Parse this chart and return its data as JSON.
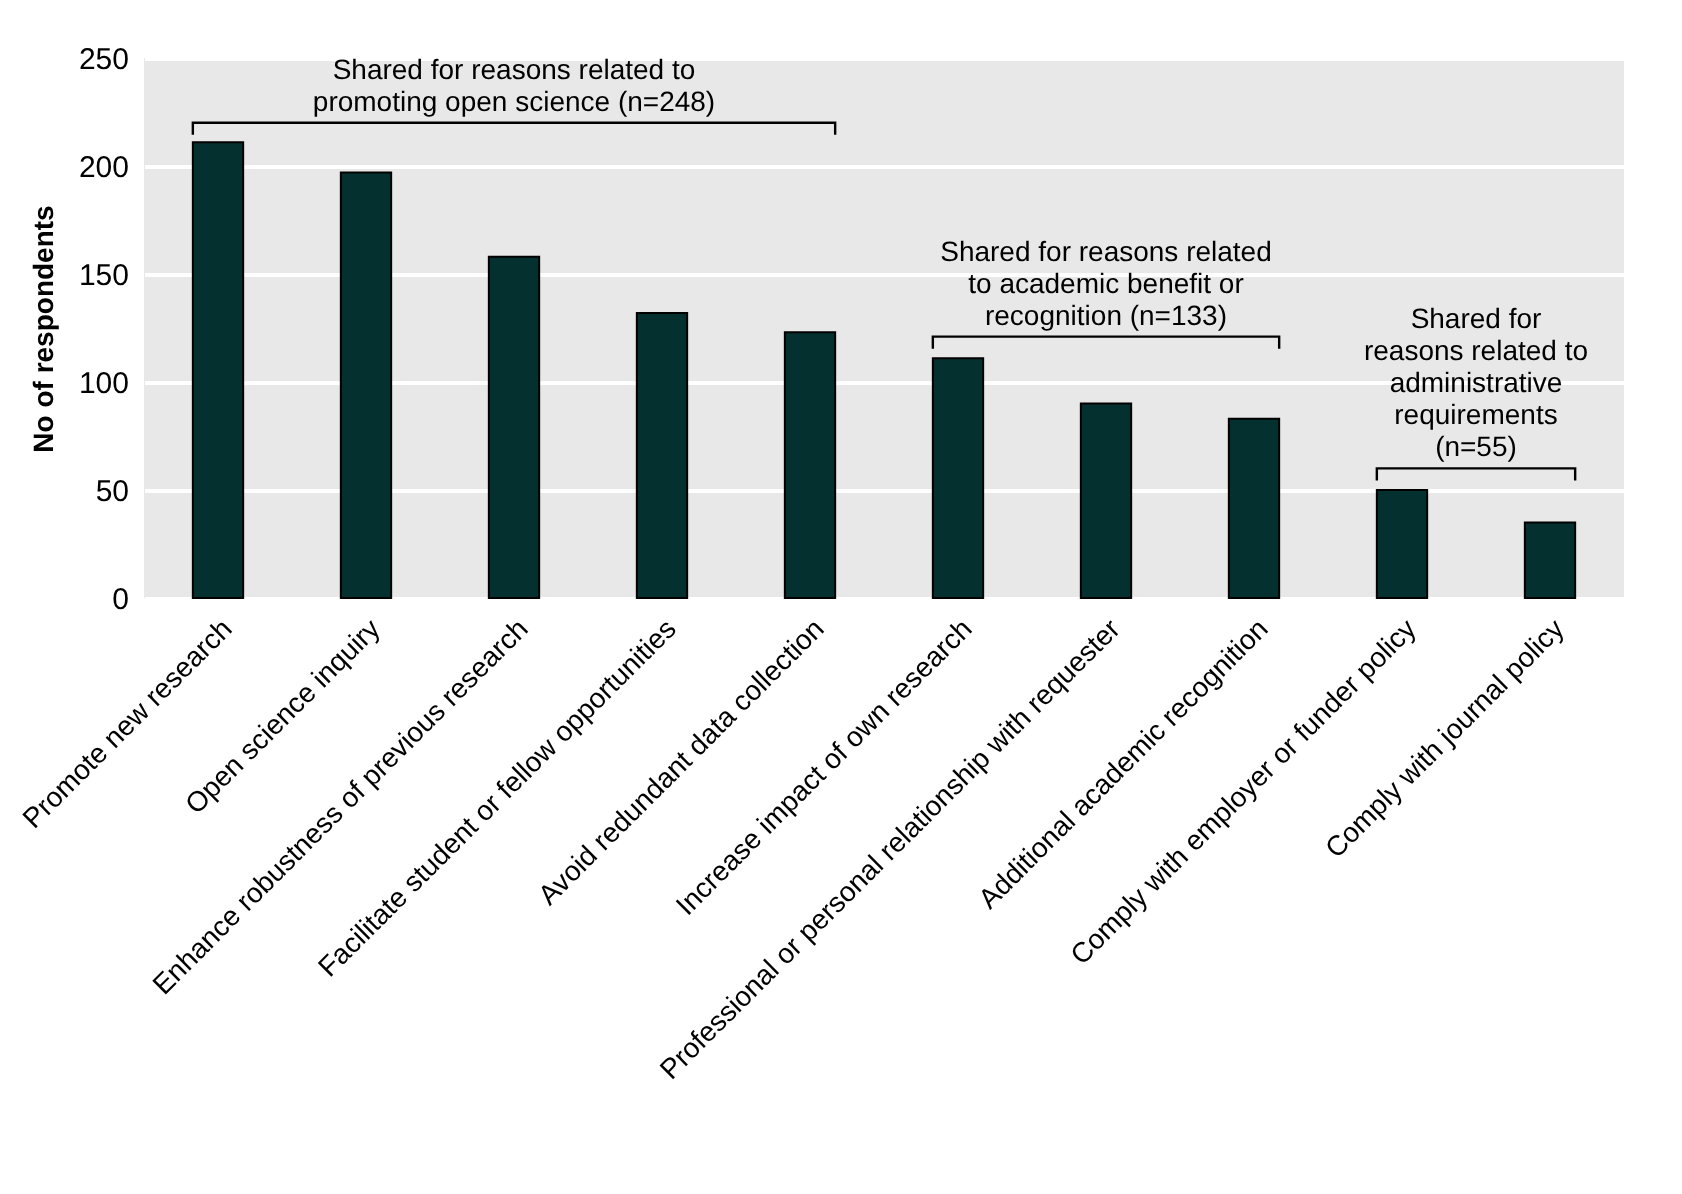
{
  "chart_data": {
    "type": "bar",
    "ylabel": "No of respondents",
    "categories": [
      "Promote new research",
      "Open science inquiry",
      "Enhance robustness of previous research",
      "Facilitate student or fellow opportunities",
      "Avoid redundant data collection",
      "Increase impact of own research",
      "Professional or personal relationship with requester",
      "Additional academic recognition",
      "Comply with employer or funder policy",
      "Comply with journal policy"
    ],
    "values": [
      211,
      197,
      158,
      132,
      123,
      111,
      90,
      83,
      50,
      35
    ],
    "color": "#04302f",
    "ylim": [
      0,
      250
    ],
    "yticks": [
      0,
      50,
      100,
      150,
      200,
      250
    ],
    "grid": "y",
    "annotations": [
      "Shared for reasons related to\npromoting open science (n=248)",
      "Shared for reasons related\nto academic benefit or\nrecognition (n=133)",
      "Shared for\nreasons related to\nadministrative\nrequirements\n(n=55)"
    ]
  }
}
